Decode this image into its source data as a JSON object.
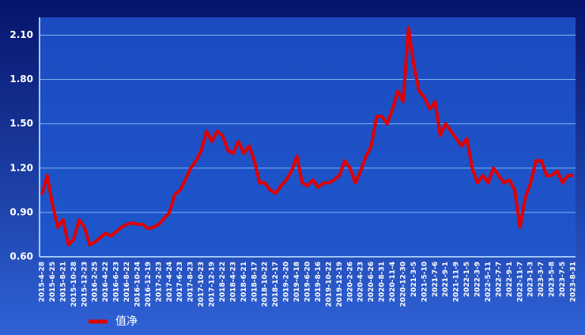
{
  "chart_data": {
    "type": "line",
    "categories": [
      "2015-4-28",
      null,
      "2015-6-25",
      null,
      "2015-8-21",
      null,
      "2015-10-28",
      null,
      "2015-12-23",
      null,
      "2016-2-25",
      null,
      "2016-4-22",
      null,
      "2016-6-23",
      null,
      "2016-8-22",
      null,
      "2016-10-24",
      null,
      "2016-12-19",
      null,
      "2017-2-23",
      null,
      "2017-4-24",
      null,
      "2017-6-23",
      null,
      "2017-8-23",
      null,
      "2017-10-23",
      null,
      "2017-12-19",
      null,
      "2018-2-22",
      null,
      "2018-4-23",
      null,
      "2018-6-21",
      null,
      "2018-8-17",
      null,
      "2018-10-22",
      null,
      "2018-12-17",
      null,
      "2019-2-20",
      null,
      "2019-4-18",
      null,
      "2019-6-20",
      null,
      "2019-8-16",
      null,
      "2019-10-22",
      null,
      "2019-12-19",
      null,
      "2020-2-26",
      null,
      "2020-4-23",
      null,
      "2020-6-26",
      null,
      "2020-8-31",
      null,
      "2020-11-4",
      null,
      "2020-12-30",
      null,
      "2021-3-5",
      null,
      "2021-5-10",
      null,
      "2021-7-6",
      null,
      "2021-9-1",
      null,
      "2021-11-9",
      null,
      "2022-1-5",
      null,
      "2022-3-9",
      null,
      "2022-5-11",
      null,
      "2022-7-7",
      null,
      "2022-9-1",
      null,
      "2022-11-7",
      null,
      "2023-1-3",
      null,
      "2023-3-7",
      null,
      "2023-5-8",
      null,
      "2023-7-5",
      null,
      "2023-8-31"
    ],
    "series": [
      {
        "name": "值净",
        "color": "#e00000",
        "values": [
          1.02,
          1.15,
          0.95,
          0.8,
          0.85,
          0.68,
          0.72,
          0.85,
          0.8,
          0.68,
          0.7,
          0.73,
          0.76,
          0.74,
          0.77,
          0.8,
          0.82,
          0.83,
          0.82,
          0.82,
          0.79,
          0.8,
          0.82,
          0.86,
          0.9,
          1.02,
          1.05,
          1.12,
          1.2,
          1.25,
          1.32,
          1.45,
          1.38,
          1.45,
          1.42,
          1.32,
          1.3,
          1.38,
          1.3,
          1.35,
          1.25,
          1.1,
          1.1,
          1.05,
          1.03,
          1.08,
          1.12,
          1.18,
          1.28,
          1.1,
          1.08,
          1.12,
          1.07,
          1.1,
          1.1,
          1.12,
          1.15,
          1.25,
          1.2,
          1.1,
          1.18,
          1.28,
          1.35,
          1.55,
          1.55,
          1.5,
          1.6,
          1.72,
          1.65,
          2.15,
          1.9,
          1.72,
          1.68,
          1.6,
          1.65,
          1.42,
          1.5,
          1.45,
          1.4,
          1.35,
          1.4,
          1.2,
          1.1,
          1.15,
          1.1,
          1.2,
          1.15,
          1.1,
          1.12,
          1.05,
          0.8,
          1.0,
          1.1,
          1.25,
          1.25,
          1.15,
          1.15,
          1.18,
          1.1,
          1.15,
          1.15
        ]
      }
    ],
    "ylim": [
      0.6,
      2.22
    ],
    "yticks": [
      {
        "value": 0.6,
        "label": "0.60"
      },
      {
        "value": 0.9,
        "label": "0.90"
      },
      {
        "value": 1.2,
        "label": "1.20"
      },
      {
        "value": 1.5,
        "label": "1.50"
      },
      {
        "value": 1.8,
        "label": "1.80"
      },
      {
        "value": 2.1,
        "label": "2.10"
      }
    ],
    "grid": true
  }
}
